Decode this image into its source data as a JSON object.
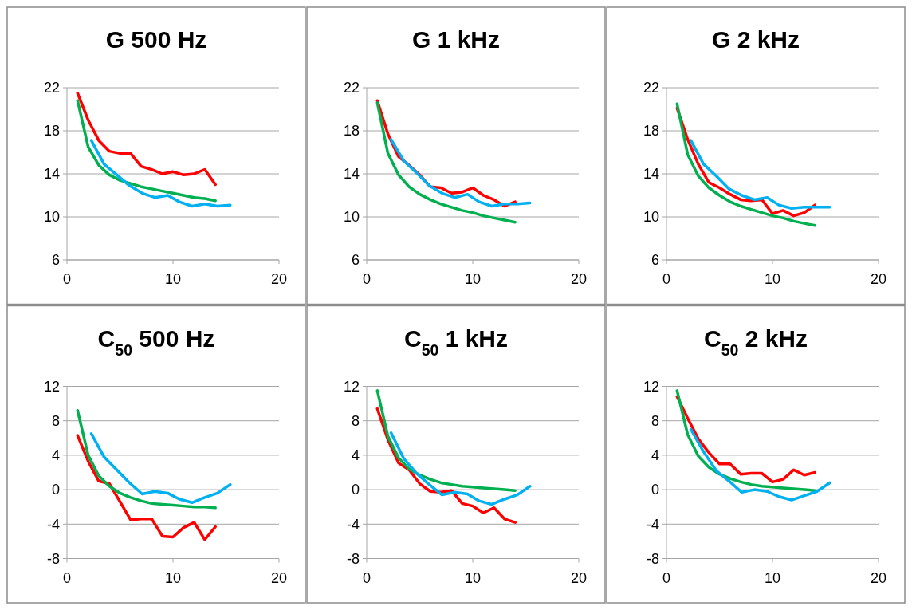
{
  "chart_data": [
    {
      "type": "line",
      "title": "G 500 Hz",
      "x": [
        1,
        2,
        3,
        4,
        5,
        6,
        7,
        8,
        9,
        10,
        11,
        12,
        13,
        14
      ],
      "xlim": [
        0,
        20
      ],
      "xticks": [
        0,
        10,
        20
      ],
      "ylim": [
        6,
        22
      ],
      "yticks": [
        6,
        10,
        14,
        18,
        22
      ],
      "grid": "y",
      "series": [
        {
          "color": "#ff0000",
          "values": [
            21.5,
            19.0,
            17.1,
            16.1,
            15.9,
            15.9,
            14.7,
            14.4,
            14.0,
            14.2,
            13.9,
            14.0,
            14.4,
            13.0
          ]
        },
        {
          "color": "#00b050",
          "values": [
            20.8,
            16.5,
            14.8,
            13.9,
            13.4,
            13.1,
            12.8,
            12.6,
            12.4,
            12.2,
            12.0,
            11.8,
            11.7,
            11.5
          ]
        },
        {
          "color": "#00b0f0",
          "x": [
            2.3,
            3.5,
            4.7,
            5.9,
            7.1,
            8.3,
            9.5,
            10.6,
            11.8,
            13,
            14.2,
            15.4
          ],
          "values": [
            17.1,
            14.9,
            13.9,
            12.9,
            12.2,
            11.8,
            12.0,
            11.4,
            11.0,
            11.2,
            11.0,
            11.1
          ]
        }
      ]
    },
    {
      "type": "line",
      "title": "G 1 kHz",
      "x": [
        1,
        2,
        3,
        4,
        5,
        6,
        7,
        8,
        9,
        10,
        11,
        12,
        13,
        14
      ],
      "xlim": [
        0,
        20
      ],
      "xticks": [
        0,
        10,
        20
      ],
      "ylim": [
        6,
        22
      ],
      "yticks": [
        6,
        10,
        14,
        18,
        22
      ],
      "grid": "y",
      "series": [
        {
          "color": "#ff0000",
          "values": [
            20.8,
            17.7,
            15.6,
            14.8,
            13.9,
            12.8,
            12.7,
            12.2,
            12.3,
            12.7,
            12.0,
            11.6,
            11.0,
            11.4
          ]
        },
        {
          "color": "#00b050",
          "values": [
            20.6,
            15.9,
            13.9,
            12.8,
            12.1,
            11.6,
            11.2,
            10.9,
            10.6,
            10.4,
            10.1,
            9.9,
            9.7,
            9.5
          ]
        },
        {
          "color": "#00b0f0",
          "x": [
            2.3,
            3.5,
            4.7,
            5.9,
            7.1,
            8.3,
            9.5,
            10.6,
            11.8,
            13,
            14.2,
            15.4
          ],
          "values": [
            17.2,
            15.2,
            14.1,
            12.9,
            12.2,
            11.8,
            12.1,
            11.4,
            11.0,
            11.2,
            11.2,
            11.3
          ]
        }
      ]
    },
    {
      "type": "line",
      "title": "G 2 kHz",
      "x": [
        1,
        2,
        3,
        4,
        5,
        6,
        7,
        8,
        9,
        10,
        11,
        12,
        13,
        14
      ],
      "xlim": [
        0,
        20
      ],
      "xticks": [
        0,
        10,
        20
      ],
      "ylim": [
        6,
        22
      ],
      "yticks": [
        6,
        10,
        14,
        18,
        22
      ],
      "grid": "y",
      "series": [
        {
          "color": "#ff0000",
          "values": [
            20.1,
            17.2,
            14.9,
            13.2,
            12.7,
            12.1,
            11.6,
            11.5,
            11.6,
            10.3,
            10.6,
            10.1,
            10.4,
            11.1
          ]
        },
        {
          "color": "#00b050",
          "values": [
            20.5,
            15.8,
            13.8,
            12.7,
            12.0,
            11.4,
            11.0,
            10.7,
            10.4,
            10.1,
            9.9,
            9.6,
            9.4,
            9.2
          ]
        },
        {
          "color": "#00b0f0",
          "x": [
            2.3,
            3.5,
            4.7,
            5.9,
            7.1,
            8.3,
            9.5,
            10.6,
            11.8,
            13,
            14.2,
            15.4
          ],
          "values": [
            17.1,
            14.9,
            13.8,
            12.6,
            12.0,
            11.6,
            11.8,
            11.1,
            10.8,
            10.9,
            10.9,
            10.9
          ]
        }
      ]
    },
    {
      "type": "line",
      "title": "C$_{50}$ 500 Hz",
      "x": [
        1,
        2,
        3,
        4,
        5,
        6,
        7,
        8,
        9,
        10,
        11,
        12,
        13,
        14
      ],
      "xlim": [
        0,
        20
      ],
      "xticks": [
        0,
        10,
        20
      ],
      "ylim": [
        -8,
        12
      ],
      "yticks": [
        -8,
        -4,
        0,
        4,
        8,
        12
      ],
      "grid": "y",
      "series": [
        {
          "color": "#ff0000",
          "values": [
            6.3,
            3.3,
            1.0,
            0.7,
            -1.4,
            -3.5,
            -3.4,
            -3.4,
            -5.4,
            -5.5,
            -4.4,
            -3.8,
            -5.8,
            -4.3
          ]
        },
        {
          "color": "#00b050",
          "values": [
            9.2,
            4.0,
            1.6,
            0.4,
            -0.4,
            -0.9,
            -1.3,
            -1.6,
            -1.7,
            -1.8,
            -1.9,
            -2.0,
            -2.0,
            -2.1
          ]
        },
        {
          "color": "#00b0f0",
          "x": [
            2.3,
            3.5,
            4.7,
            5.9,
            7.1,
            8.3,
            9.5,
            10.6,
            11.8,
            13,
            14.2,
            15.4
          ],
          "values": [
            6.5,
            3.8,
            2.3,
            0.8,
            -0.5,
            -0.2,
            -0.4,
            -1.1,
            -1.5,
            -0.9,
            -0.4,
            0.6
          ]
        }
      ]
    },
    {
      "type": "line",
      "title": "C$_{50}$ 1 kHz",
      "x": [
        1,
        2,
        3,
        4,
        5,
        6,
        7,
        8,
        9,
        10,
        11,
        12,
        13,
        14
      ],
      "xlim": [
        0,
        20
      ],
      "xticks": [
        0,
        10,
        20
      ],
      "ylim": [
        -8,
        12
      ],
      "yticks": [
        -8,
        -4,
        0,
        4,
        8,
        12
      ],
      "grid": "y",
      "series": [
        {
          "color": "#ff0000",
          "values": [
            9.4,
            5.8,
            3.1,
            2.3,
            0.7,
            -0.2,
            -0.3,
            -0.1,
            -1.6,
            -1.9,
            -2.7,
            -2.1,
            -3.4,
            -3.8
          ]
        },
        {
          "color": "#00b050",
          "values": [
            11.5,
            6.2,
            3.7,
            2.4,
            1.7,
            1.2,
            0.8,
            0.6,
            0.4,
            0.3,
            0.2,
            0.1,
            0.0,
            -0.1
          ]
        },
        {
          "color": "#00b0f0",
          "x": [
            2.3,
            3.5,
            4.7,
            5.9,
            7.1,
            8.3,
            9.5,
            10.6,
            11.8,
            13,
            14.2,
            15.4
          ],
          "values": [
            6.6,
            3.6,
            1.9,
            0.6,
            -0.6,
            -0.3,
            -0.5,
            -1.3,
            -1.7,
            -1.1,
            -0.6,
            0.4
          ]
        }
      ]
    },
    {
      "type": "line",
      "title": "C$_{50}$ 2 kHz",
      "x": [
        1,
        2,
        3,
        4,
        5,
        6,
        7,
        8,
        9,
        10,
        11,
        12,
        13,
        14
      ],
      "xlim": [
        0,
        20
      ],
      "xticks": [
        0,
        10,
        20
      ],
      "ylim": [
        -8,
        12
      ],
      "yticks": [
        -8,
        -4,
        0,
        4,
        8,
        12
      ],
      "grid": "y",
      "series": [
        {
          "color": "#ff0000",
          "values": [
            10.8,
            8.3,
            5.9,
            4.3,
            3.0,
            3.0,
            1.8,
            1.9,
            1.9,
            0.9,
            1.2,
            2.3,
            1.7,
            2.0
          ]
        },
        {
          "color": "#00b050",
          "values": [
            11.5,
            6.4,
            3.9,
            2.6,
            1.8,
            1.3,
            0.9,
            0.6,
            0.4,
            0.3,
            0.2,
            0.1,
            0.0,
            -0.1
          ]
        },
        {
          "color": "#00b0f0",
          "x": [
            2.3,
            3.5,
            4.7,
            5.9,
            7.1,
            8.3,
            9.5,
            10.6,
            11.8,
            13,
            14.2,
            15.4
          ],
          "values": [
            7.0,
            4.4,
            2.2,
            1.0,
            -0.3,
            0.0,
            -0.2,
            -0.8,
            -1.2,
            -0.7,
            -0.2,
            0.8
          ]
        }
      ]
    }
  ]
}
